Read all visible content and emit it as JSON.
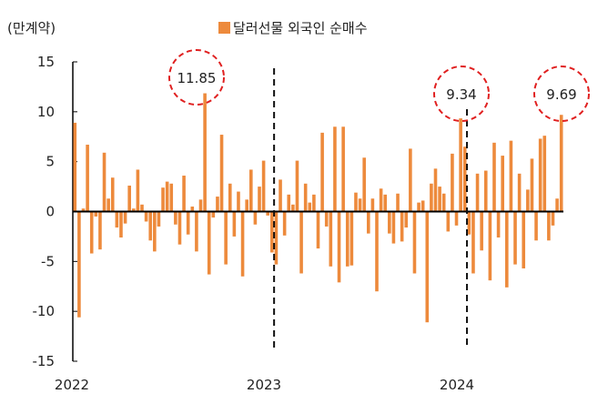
{
  "chart_data": {
    "type": "bar",
    "unit_label": "(만계약)",
    "series": [
      {
        "name": "달러선물 외국인 순매수",
        "color": "#ED8A3C",
        "values": [
          8.9,
          -10.6,
          0.3,
          6.7,
          -4.2,
          -0.5,
          -3.8,
          5.9,
          1.3,
          3.4,
          -1.6,
          -2.6,
          -1.2,
          2.6,
          0.3,
          4.2,
          0.7,
          -1.0,
          -2.9,
          -4.0,
          -1.5,
          2.4,
          3.0,
          2.8,
          -1.3,
          -3.3,
          3.6,
          -2.3,
          0.5,
          -4.0,
          1.2,
          11.85,
          -6.3,
          -0.6,
          1.5,
          7.7,
          -5.3,
          2.8,
          -2.5,
          2.0,
          -6.5,
          1.2,
          4.2,
          -1.3,
          2.5,
          5.1,
          -0.4,
          -4.1,
          -5.3,
          3.2,
          -2.4,
          1.7,
          0.7,
          5.1,
          -6.2,
          2.8,
          0.9,
          1.7,
          -3.7,
          7.9,
          -1.5,
          -5.5,
          8.5,
          -7.1,
          8.5,
          -5.5,
          -5.4,
          1.9,
          1.3,
          5.4,
          -2.2,
          1.3,
          -8.0,
          2.3,
          1.7,
          -2.2,
          -3.2,
          1.8,
          -3.0,
          -1.6,
          6.3,
          -6.2,
          0.9,
          1.1,
          -11.1,
          2.8,
          4.3,
          2.5,
          1.8,
          -2.0,
          5.8,
          -1.4,
          9.34,
          6.5,
          -2.3,
          -6.2,
          3.8,
          -3.9,
          4.1,
          -6.9,
          6.9,
          -2.6,
          5.6,
          -7.6,
          7.1,
          -5.3,
          3.8,
          -5.7,
          2.2,
          5.3,
          -2.9,
          7.3,
          7.6,
          -2.9,
          -1.4,
          1.3,
          9.69
        ]
      }
    ],
    "x_ticks": [
      "2022",
      "2023",
      "2024"
    ],
    "y_ticks": [
      "15",
      "10",
      "5",
      "0",
      "-5",
      "-10",
      "-15"
    ],
    "ylim": [
      -15,
      15
    ],
    "annotations": [
      "11.85",
      "9.34",
      "9.69"
    ],
    "legend_position": "top-center",
    "colors": {
      "bar": "#ED8A3C",
      "highlight_circle": "#E02020",
      "divider": "#111111"
    }
  }
}
